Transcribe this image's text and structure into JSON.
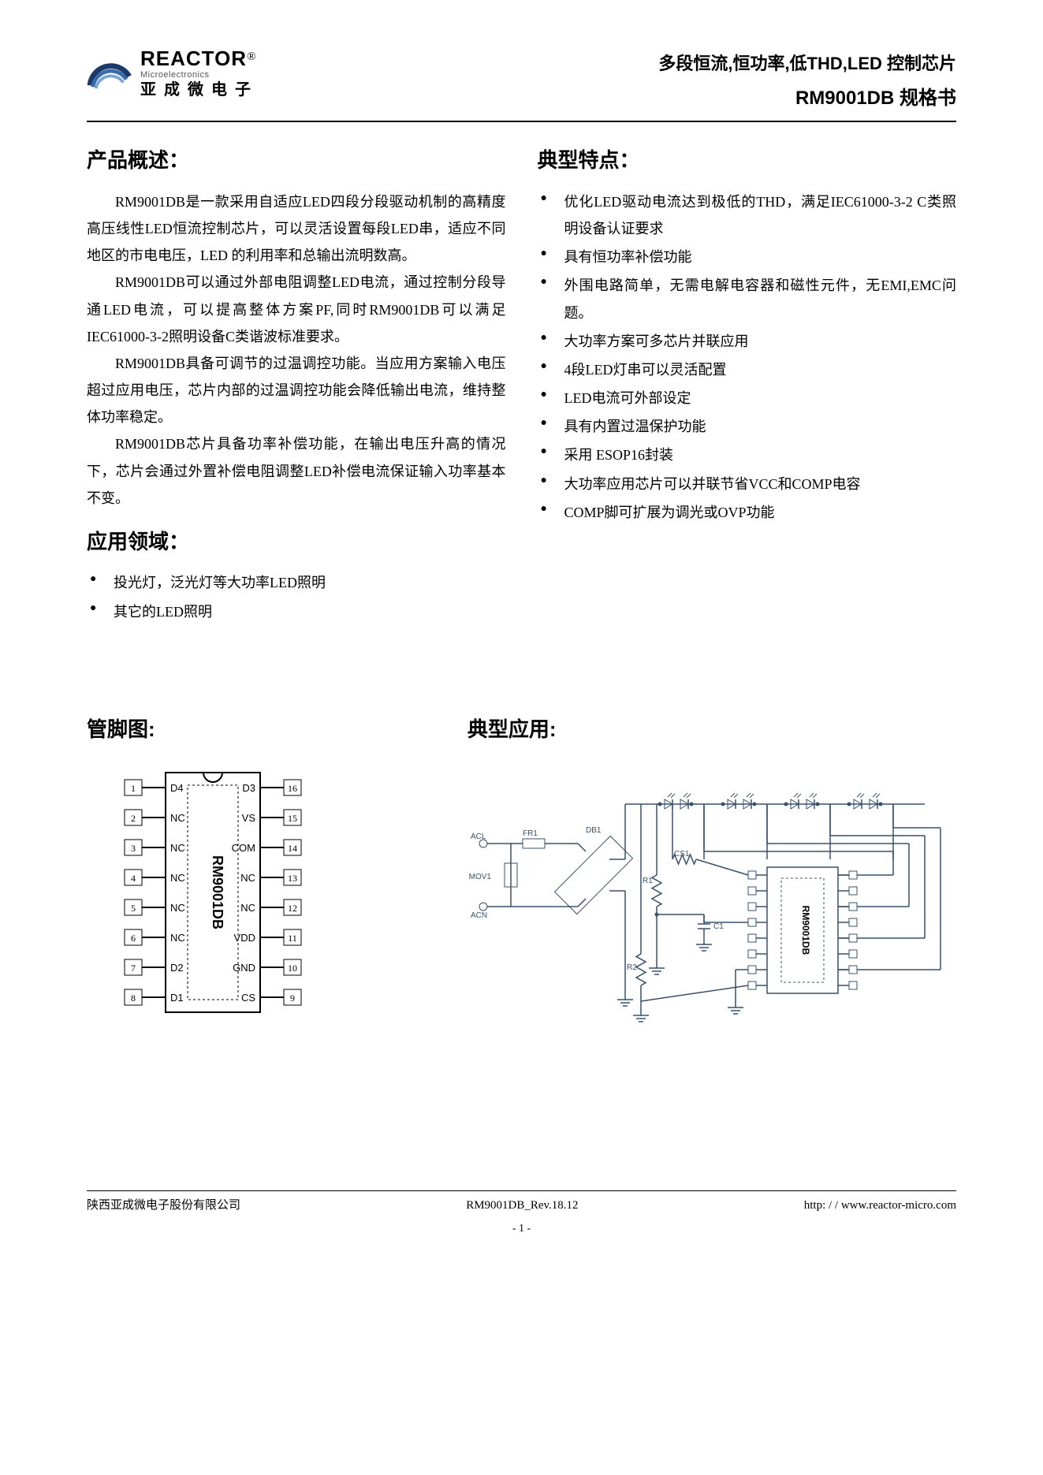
{
  "header": {
    "brand_en": "REACTOR",
    "brand_reg": "®",
    "brand_sub": "Microelectronics",
    "brand_cn": "亚成微电子",
    "title_line1": "多段恒流,恒功率,低THD,LED 控制芯片",
    "title_line2": "RM9001DB 规格书"
  },
  "sections": {
    "overview_title": "产品概述：",
    "overview_paras": [
      "RM9001DB是一款采用自适应LED四段分段驱动机制的高精度高压线性LED恒流控制芯片，可以灵活设置每段LED串，适应不同地区的市电电压，LED 的利用率和总输出流明数高。",
      "RM9001DB可以通过外部电阻调整LED电流，通过控制分段导通LED电流，可以提高整体方案PF,同时RM9001DB可以满足IEC61000-3-2照明设备C类谐波标准要求。",
      "RM9001DB具备可调节的过温调控功能。当应用方案输入电压超过应用电压，芯片内部的过温调控功能会降低输出电流，维持整体功率稳定。",
      "RM9001DB芯片具备功率补偿功能，在输出电压升高的情况下，芯片会通过外置补偿电阻调整LED补偿电流保证输入功率基本不变。"
    ],
    "apps_title": "应用领域：",
    "apps": [
      "投光灯，泛光灯等大功率LED照明",
      "其它的LED照明"
    ],
    "features_title": "典型特点：",
    "features": [
      "优化LED驱动电流达到极低的THD，满足IEC61000-3-2  C类照明设备认证要求",
      "具有恒功率补偿功能",
      "外围电路简单，无需电解电容器和磁性元件，无EMI,EMC问题。",
      "大功率方案可多芯片并联应用",
      "4段LED灯串可以灵活配置",
      "LED电流可外部设定",
      "具有内置过温保护功能",
      "采用 ESOP16封装",
      "大功率应用芯片可以并联节省VCC和COMP电容",
      "COMP脚可扩展为调光或OVP功能"
    ],
    "pin_title": "管脚图:",
    "typapp_title": "典型应用:"
  },
  "pin_diagram": {
    "chip_label": "RM9001DB",
    "left_pins": [
      {
        "num": "1",
        "name": "D4"
      },
      {
        "num": "2",
        "name": "NC"
      },
      {
        "num": "3",
        "name": "NC"
      },
      {
        "num": "4",
        "name": "NC"
      },
      {
        "num": "5",
        "name": "NC"
      },
      {
        "num": "6",
        "name": "NC"
      },
      {
        "num": "7",
        "name": "D2"
      },
      {
        "num": "8",
        "name": "D1"
      }
    ],
    "right_pins": [
      {
        "num": "16",
        "name": "D3"
      },
      {
        "num": "15",
        "name": "VS"
      },
      {
        "num": "14",
        "name": "COM"
      },
      {
        "num": "13",
        "name": "NC"
      },
      {
        "num": "12",
        "name": "NC"
      },
      {
        "num": "11",
        "name": "VDD"
      },
      {
        "num": "10",
        "name": "GND"
      },
      {
        "num": "9",
        "name": "CS"
      }
    ],
    "colors": {
      "stroke": "#000000",
      "fill": "#ffffff",
      "text": "#000000"
    }
  },
  "app_diagram": {
    "chip_label": "RM9001DB",
    "inputs": [
      "ACL",
      "ACN"
    ],
    "components": {
      "fuse": "FR1",
      "bridge": "DB1",
      "mov": "MOV1",
      "r1": "R1",
      "c1": "C1",
      "r2": "R2",
      "cs1": "CS1"
    },
    "stroke": "#39506a",
    "leds": 8
  },
  "footer": {
    "left": "陕西亚成微电子股份有限公司",
    "center": "RM9001DB_Rev.18.12",
    "right": "http: / / www.reactor-micro.com",
    "page": "- 1 -"
  }
}
